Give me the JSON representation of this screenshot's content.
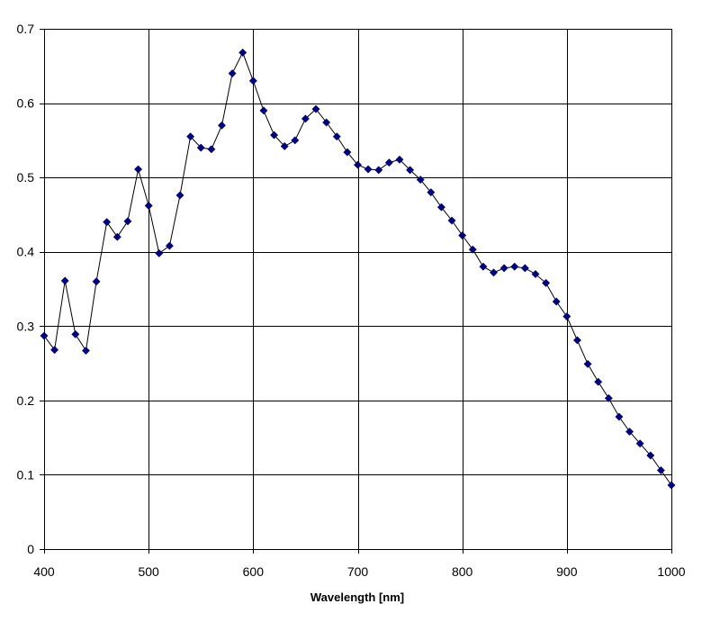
{
  "chart_data": {
    "type": "line",
    "title": "",
    "xlabel": "Wavelength [nm]",
    "ylabel": "",
    "xlim": [
      400,
      1000
    ],
    "ylim": [
      0,
      0.7
    ],
    "xticks": [
      400,
      500,
      600,
      700,
      800,
      900,
      1000
    ],
    "yticks": [
      0,
      0.1,
      0.2,
      0.3,
      0.4,
      0.5,
      0.6,
      0.7
    ],
    "xtick_labels": [
      "400",
      "500",
      "600",
      "700",
      "800",
      "900",
      "1000"
    ],
    "ytick_labels": [
      "0",
      "0.1",
      "0.2",
      "0.3",
      "0.4",
      "0.5",
      "0.6",
      "0.7"
    ],
    "grid": true,
    "legend": "none",
    "series_color": "#000080",
    "line_color": "#000000",
    "grid_color": "#000000",
    "marker": "diamond",
    "series": [
      {
        "x": [
          400,
          410,
          420,
          430,
          440,
          450,
          460,
          470,
          480,
          490,
          500,
          510,
          520,
          530,
          540,
          550,
          560,
          570,
          580,
          590,
          600,
          610,
          620,
          630,
          640,
          650,
          660,
          670,
          680,
          690,
          700,
          710,
          720,
          730,
          740,
          750,
          760,
          770,
          780,
          790,
          800,
          810,
          820,
          830,
          840,
          850,
          860,
          870,
          880,
          890,
          900,
          910,
          920,
          930,
          940,
          950,
          960,
          970,
          980,
          990,
          1000
        ],
        "values": [
          0.287,
          0.268,
          0.361,
          0.289,
          0.267,
          0.36,
          0.44,
          0.42,
          0.441,
          0.511,
          0.462,
          0.398,
          0.408,
          0.476,
          0.555,
          0.54,
          0.538,
          0.57,
          0.64,
          0.668,
          0.63,
          0.59,
          0.557,
          0.542,
          0.55,
          0.579,
          0.592,
          0.574,
          0.555,
          0.534,
          0.517,
          0.511,
          0.51,
          0.52,
          0.524,
          0.51,
          0.497,
          0.48,
          0.46,
          0.442,
          0.422,
          0.403,
          0.38,
          0.372,
          0.378,
          0.38,
          0.378,
          0.37,
          0.358,
          0.333,
          0.313,
          0.281,
          0.249,
          0.225,
          0.203,
          0.178,
          0.158,
          0.142,
          0.126,
          0.106,
          0.086
        ]
      }
    ]
  }
}
